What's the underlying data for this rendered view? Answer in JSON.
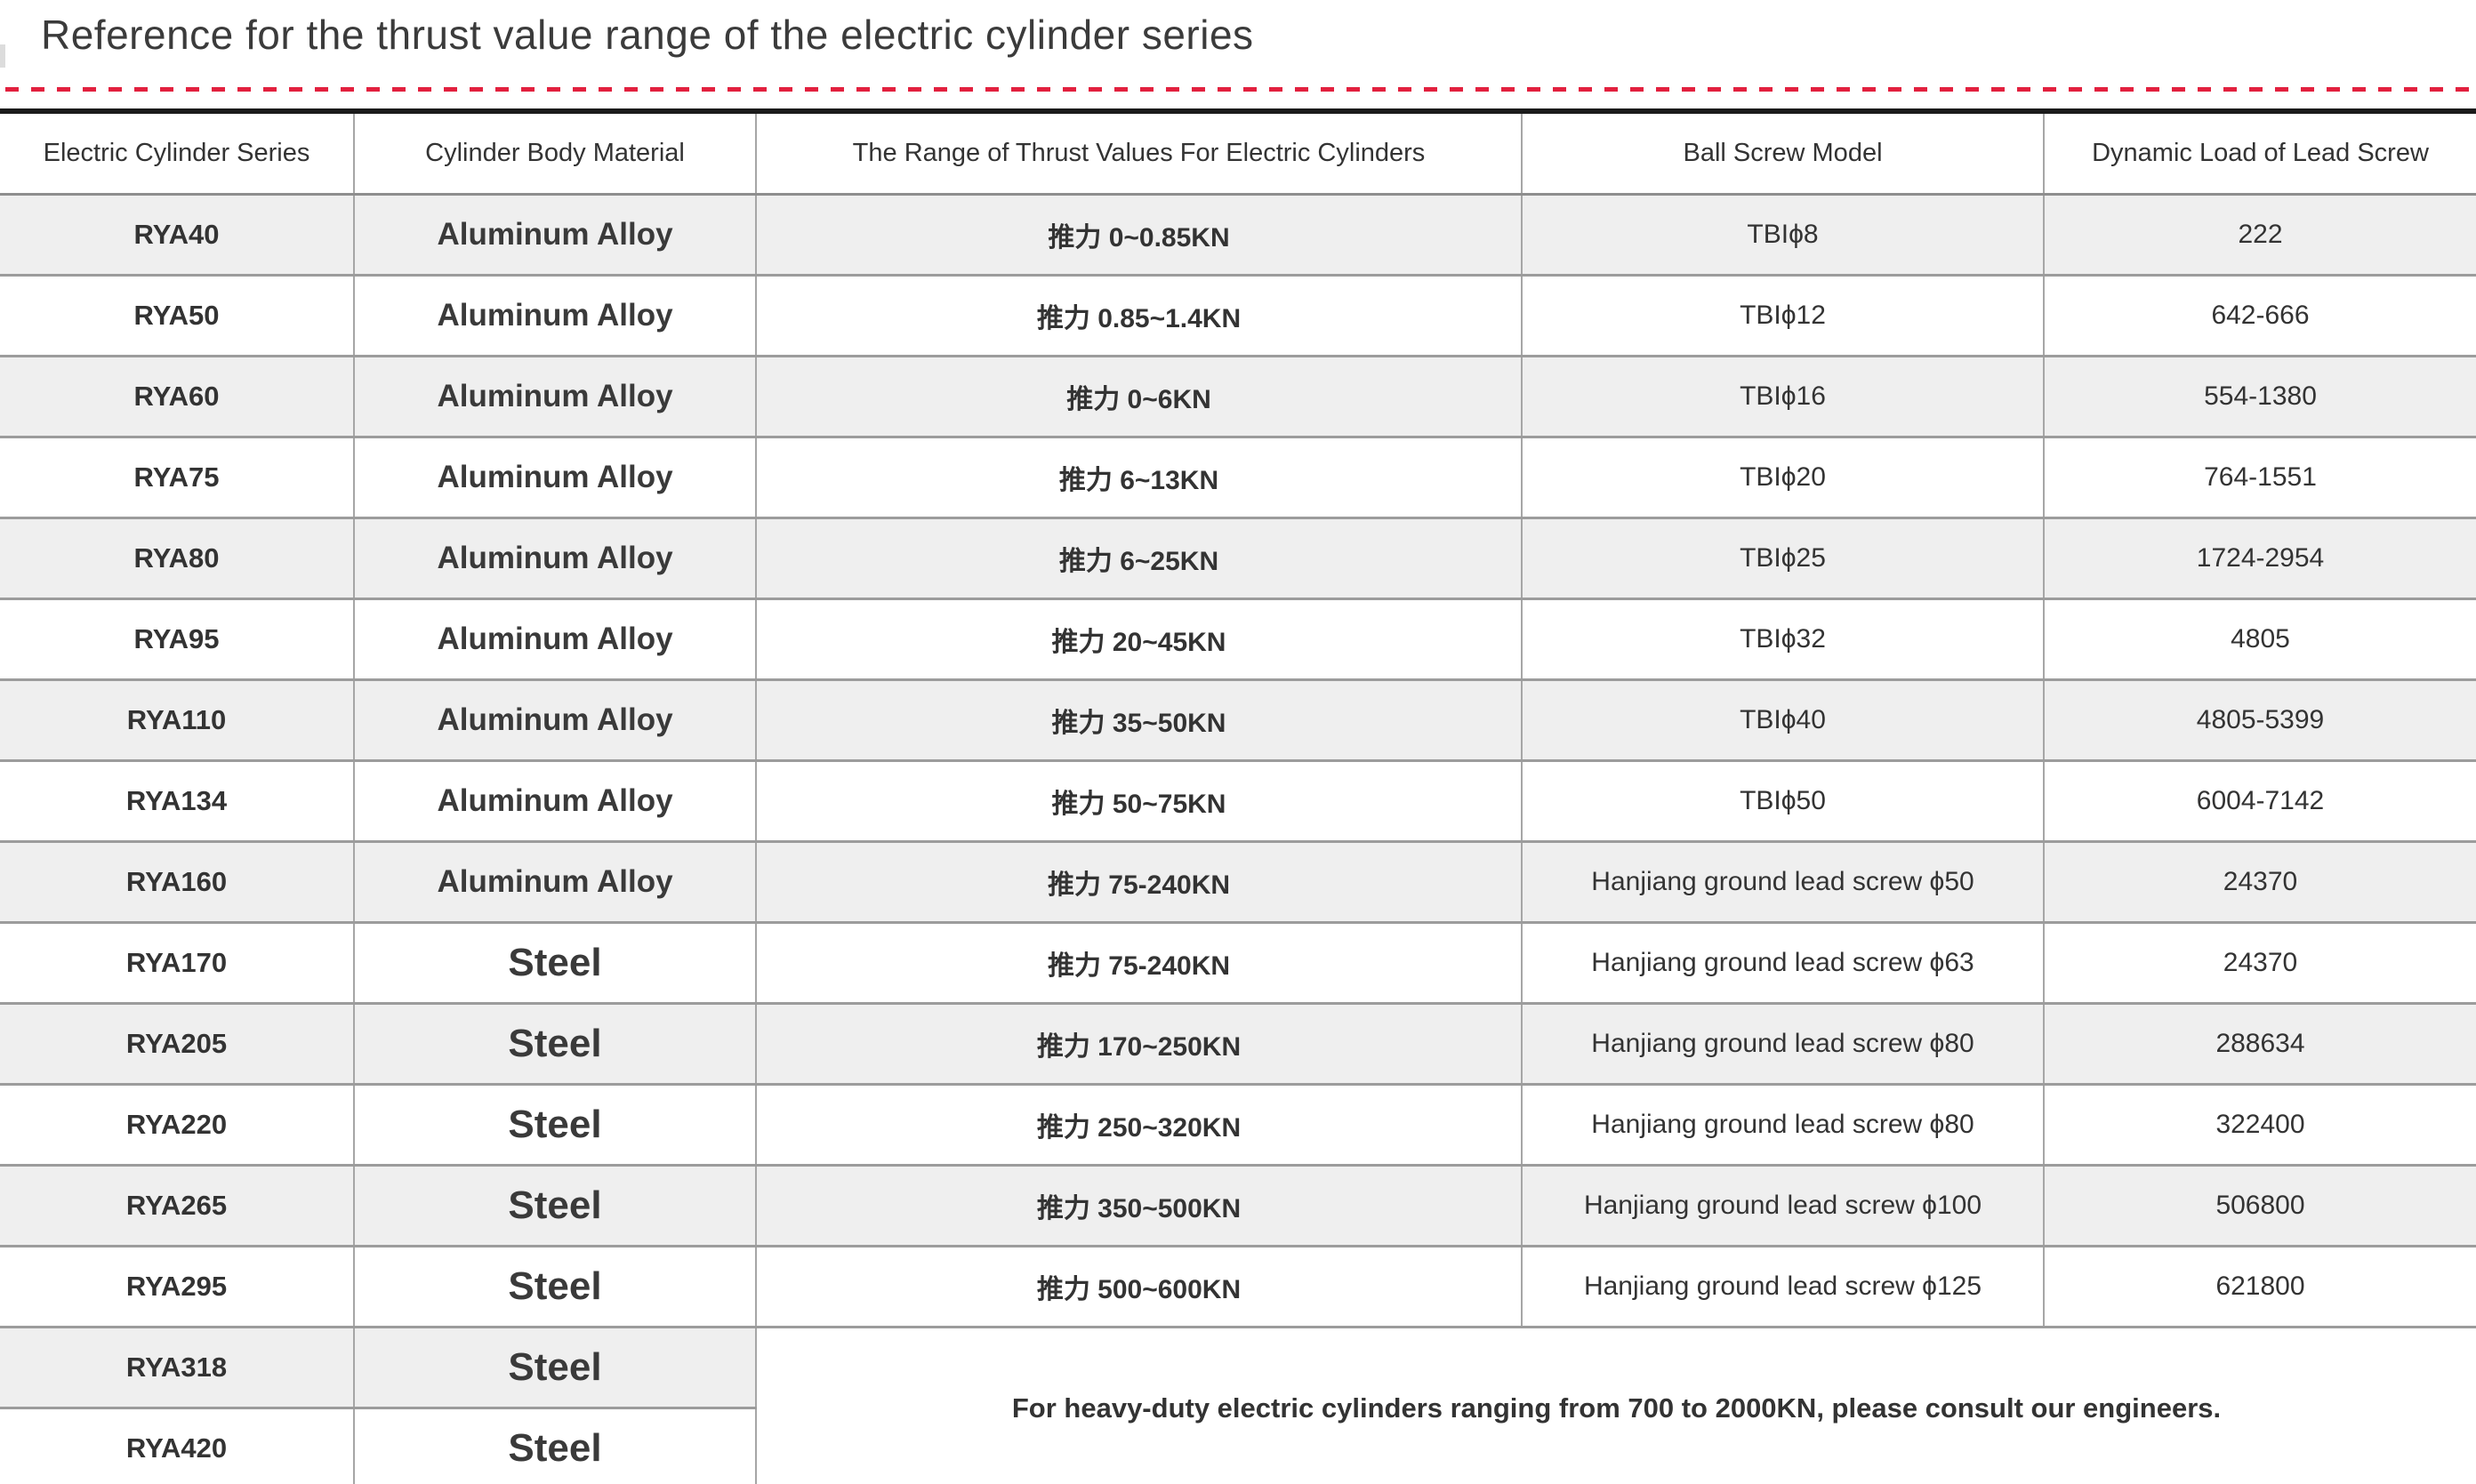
{
  "header": {
    "title": "Reference for the thrust value range of the electric cylinder series"
  },
  "colors": {
    "accent_red": "#e2203e",
    "table_top_border": "#1b1b1b",
    "row_alt_gray": "#efefef",
    "grid_line": "#9c9c9c"
  },
  "table": {
    "columns": [
      "Electric Cylinder Series",
      "Cylinder Body Material",
      "The Range of Thrust Values For Electric Cylinders",
      "Ball Screw Model",
      "Dynamic Load of Lead Screw"
    ],
    "rows": [
      {
        "series": "RYA40",
        "material": "Aluminum Alloy",
        "thrust": "推力 0~0.85KN",
        "screw": "TBIϕ8",
        "load": "222"
      },
      {
        "series": "RYA50",
        "material": "Aluminum Alloy",
        "thrust": "推力 0.85~1.4KN",
        "screw": "TBIϕ12",
        "load": "642-666"
      },
      {
        "series": "RYA60",
        "material": "Aluminum Alloy",
        "thrust": "推力 0~6KN",
        "screw": "TBIϕ16",
        "load": "554-1380"
      },
      {
        "series": "RYA75",
        "material": "Aluminum Alloy",
        "thrust": "推力 6~13KN",
        "screw": "TBIϕ20",
        "load": "764-1551"
      },
      {
        "series": "RYA80",
        "material": "Aluminum Alloy",
        "thrust": "推力 6~25KN",
        "screw": "TBIϕ25",
        "load": "1724-2954"
      },
      {
        "series": "RYA95",
        "material": "Aluminum Alloy",
        "thrust": "推力 20~45KN",
        "screw": "TBIϕ32",
        "load": "4805"
      },
      {
        "series": "RYA110",
        "material": "Aluminum Alloy",
        "thrust": "推力 35~50KN",
        "screw": "TBIϕ40",
        "load": "4805-5399"
      },
      {
        "series": "RYA134",
        "material": "Aluminum Alloy",
        "thrust": "推力 50~75KN",
        "screw": "TBIϕ50",
        "load": "6004-7142"
      },
      {
        "series": "RYA160",
        "material": "Aluminum Alloy",
        "thrust": "推力 75-240KN",
        "screw": "Hanjiang ground lead screw ϕ50",
        "load": "24370"
      },
      {
        "series": "RYA170",
        "material": "Steel",
        "thrust": "推力 75-240KN",
        "screw": "Hanjiang ground lead screw ϕ63",
        "load": "24370"
      },
      {
        "series": "RYA205",
        "material": "Steel",
        "thrust": "推力 170~250KN",
        "screw": "Hanjiang ground lead screw ϕ80",
        "load": "288634"
      },
      {
        "series": "RYA220",
        "material": "Steel",
        "thrust": "推力 250~320KN",
        "screw": "Hanjiang ground lead screw ϕ80",
        "load": "322400"
      },
      {
        "series": "RYA265",
        "material": "Steel",
        "thrust": "推力 350~500KN",
        "screw": "Hanjiang ground lead screw ϕ100",
        "load": "506800"
      },
      {
        "series": "RYA295",
        "material": "Steel",
        "thrust": "推力 500~600KN",
        "screw": "Hanjiang ground lead screw ϕ125",
        "load": "621800"
      }
    ],
    "extra_rows": [
      {
        "series": "RYA318",
        "material": "Steel"
      },
      {
        "series": "RYA420",
        "material": "Steel"
      }
    ],
    "note": "For heavy-duty electric cylinders ranging from 700 to 2000KN, please consult our engineers."
  }
}
